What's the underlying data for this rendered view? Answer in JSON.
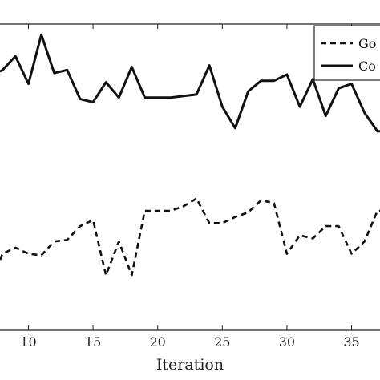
{
  "chart_data": {
    "type": "line",
    "title": "",
    "xlabel": "Iteration",
    "ylabel": "",
    "xlim": [
      7.8,
      37.2
    ],
    "ylim": [
      0,
      100
    ],
    "xticks": [
      10,
      15,
      20,
      25,
      30,
      35
    ],
    "grid": false,
    "legend": {
      "placement": "top-right",
      "entries": [
        "Go",
        "Co"
      ]
    },
    "series": [
      {
        "name": "Go",
        "style": "dashed",
        "color": "#111111",
        "x": [
          7.8,
          8,
          9,
          10,
          11,
          12,
          13,
          14,
          15,
          16,
          17,
          18,
          19,
          20,
          21,
          22,
          23,
          24,
          25,
          26,
          27,
          28,
          29,
          30,
          31,
          32,
          33,
          34,
          35,
          36,
          37,
          37.2
        ],
        "y": [
          23,
          25,
          27,
          25,
          24.5,
          29,
          29.5,
          34,
          36,
          18,
          29,
          18,
          39,
          39,
          39,
          40.5,
          43,
          35,
          35,
          37,
          38.5,
          42.5,
          41.5,
          25,
          31,
          30,
          34,
          34,
          25,
          29,
          39,
          39
        ]
      },
      {
        "name": "Co",
        "style": "solid",
        "color": "#111111",
        "x": [
          7.8,
          8,
          9,
          10,
          11,
          12,
          13,
          14,
          15,
          16,
          17,
          18,
          19,
          20,
          21,
          22,
          23,
          24,
          25,
          26,
          27,
          28,
          29,
          30,
          31,
          32,
          33,
          34,
          35,
          36,
          37,
          37.2
        ],
        "y": [
          84.5,
          85,
          89.5,
          80.5,
          96.5,
          84,
          85,
          75.5,
          74.5,
          81,
          76,
          86,
          76,
          76,
          76,
          76.5,
          77,
          86.5,
          73,
          66,
          78,
          81.5,
          81.5,
          83.5,
          73,
          82,
          70,
          79,
          80.5,
          71,
          65,
          65
        ]
      }
    ]
  }
}
